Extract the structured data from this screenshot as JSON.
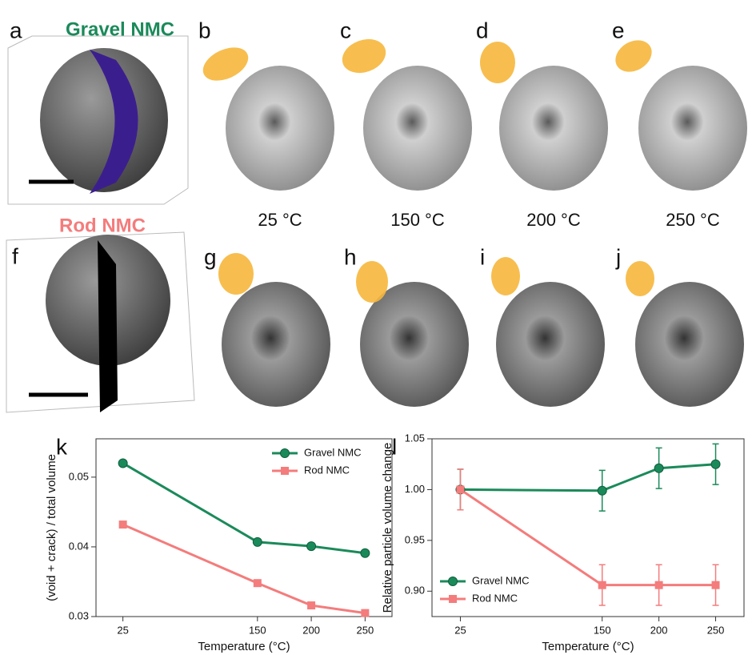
{
  "panels": {
    "letters": [
      "a",
      "b",
      "c",
      "d",
      "e",
      "f",
      "g",
      "h",
      "i",
      "j"
    ],
    "gravel_title": "Gravel NMC",
    "rod_title": "Rod NMC",
    "temperatures": [
      "25 °C",
      "150 °C",
      "200 °C",
      "250 °C"
    ]
  },
  "chart_data": [
    {
      "type": "line",
      "panel": "k",
      "x_label": "Temperature (°C)",
      "y_label": "(void + crack) / total volume",
      "x": [
        25,
        150,
        200,
        250
      ],
      "xlim": [
        0,
        275
      ],
      "xticks": [
        25,
        150,
        200,
        250
      ],
      "ylim": [
        0.03,
        0.0555
      ],
      "yticks": [
        0.03,
        0.04,
        0.05
      ],
      "legend": "upper right",
      "series": [
        {
          "name": "Gravel NMC",
          "color": "#1b8a5a",
          "marker": "circle",
          "values": [
            0.052,
            0.0407,
            0.0401,
            0.0391
          ]
        },
        {
          "name": "Rod NMC",
          "color": "#f47c7c",
          "marker": "square",
          "values": [
            0.0432,
            0.0348,
            0.0316,
            0.0305
          ]
        }
      ]
    },
    {
      "type": "line",
      "panel": "l",
      "x_label": "Temperature (°C)",
      "y_label": "Relative particle volume change",
      "x": [
        25,
        150,
        200,
        250
      ],
      "xlim": [
        0,
        275
      ],
      "xticks": [
        25,
        150,
        200,
        250
      ],
      "ylim": [
        0.875,
        1.05
      ],
      "yticks": [
        {
          "value": 0.9,
          "label": "0.90"
        },
        0.95,
        {
          "value": 1,
          "label": "1.00"
        },
        1.05
      ],
      "legend": "lower left",
      "series": [
        {
          "name": "Gravel NMC",
          "color": "#1b8a5a",
          "marker": "circle",
          "values": [
            1.0,
            0.999,
            1.021,
            1.025
          ],
          "errors": [
            0.02,
            0.02,
            0.02,
            0.02
          ]
        },
        {
          "name": "Rod NMC",
          "color": "#f47c7c",
          "marker": "square",
          "values": [
            1.0,
            0.906,
            0.906,
            0.906
          ],
          "errors": [
            0.02,
            0.02,
            0.02,
            0.02
          ]
        }
      ]
    }
  ]
}
